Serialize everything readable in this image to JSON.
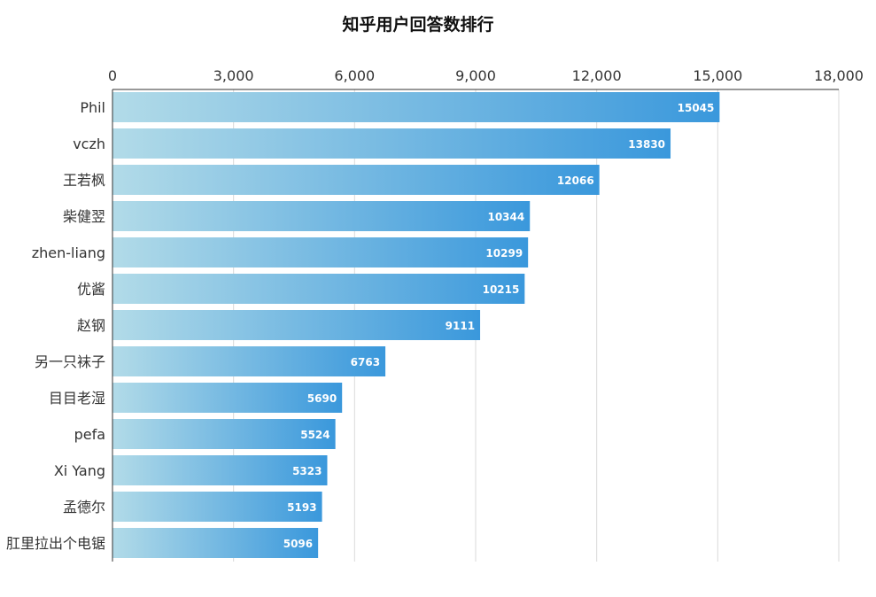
{
  "chart_data": {
    "type": "bar",
    "orientation": "horizontal",
    "title": "知乎用户回答数排行",
    "xlabel": "",
    "ylabel": "",
    "xlim": [
      0,
      18000
    ],
    "ticks": [
      0,
      3000,
      6000,
      9000,
      12000,
      15000,
      18000
    ],
    "tick_labels": [
      "0",
      "3,000",
      "6,000",
      "9,000",
      "12,000",
      "15,000",
      "18,000"
    ],
    "x_axis_position": "top",
    "grid": true,
    "legend": "none",
    "categories": [
      "Phil",
      "vczh",
      "王若枫",
      "柴健翌",
      "zhen-liang",
      "优酱",
      "赵钢",
      "另一只袜子",
      "目目老湿",
      "pefa",
      "Xi Yang",
      "孟德尔",
      "肛里拉出个电锯"
    ],
    "values": [
      15045,
      13830,
      12066,
      10344,
      10299,
      10215,
      9111,
      6763,
      5690,
      5524,
      5323,
      5193,
      5096
    ],
    "data_labels": [
      "15045",
      "13830",
      "12066",
      "10344",
      "10299",
      "10215",
      "9111",
      "6763",
      "5690",
      "5524",
      "5323",
      "5193",
      "5096"
    ],
    "colors": {
      "bar_gradient_start": "#b2dbe8",
      "bar_gradient_end": "#3a98dc",
      "gridline": "#d9d9d9",
      "axis": "#333333"
    }
  }
}
